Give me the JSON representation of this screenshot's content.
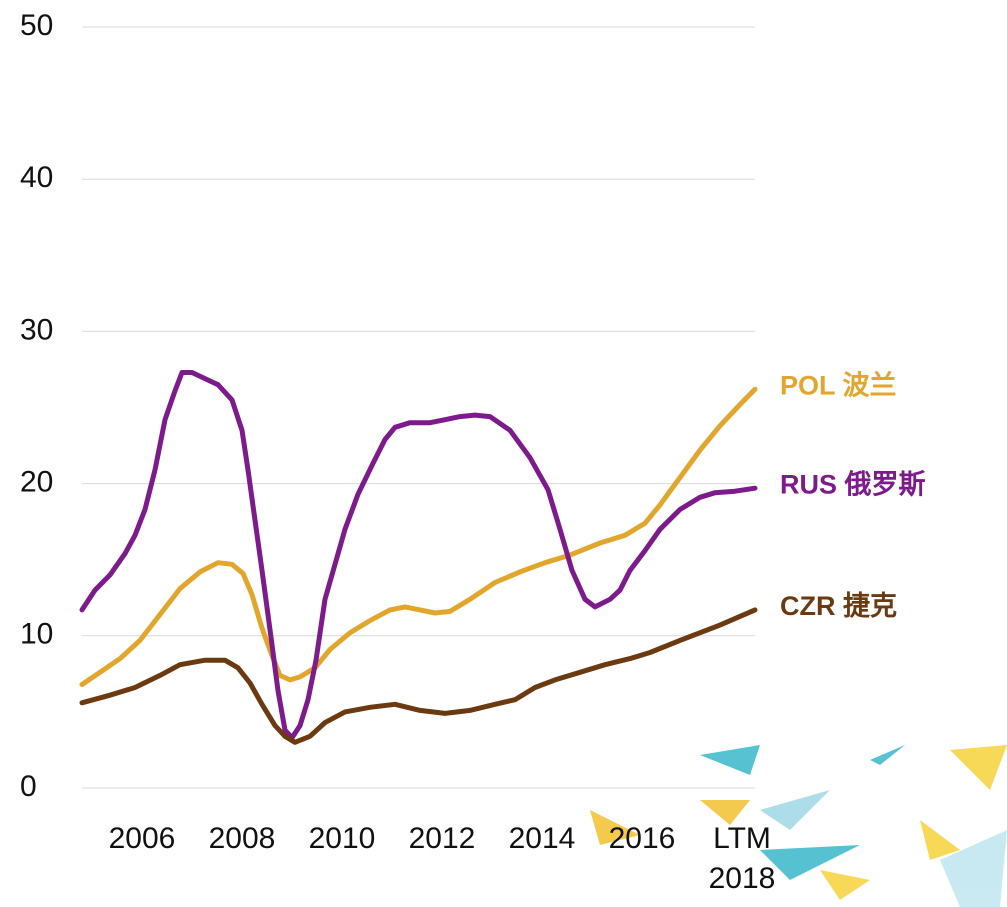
{
  "chart_data": {
    "type": "line",
    "ylim": [
      0,
      50
    ],
    "yticks": [
      0,
      10,
      20,
      30,
      40,
      50
    ],
    "grid": true,
    "xlim": [
      2004.8,
      2018.26
    ],
    "xticks": [
      2006,
      2008,
      2010,
      2012,
      2014,
      2016,
      {
        "value": 2018,
        "label": "LTM 2018"
      }
    ],
    "series": [
      {
        "name": "POL 波兰",
        "color": "#e2a62c",
        "x": [
          2004.8,
          2005.16,
          2005.56,
          2005.96,
          2006.36,
          2006.76,
          2007.16,
          2007.52,
          2007.8,
          2008.02,
          2008.2,
          2008.4,
          2008.6,
          2008.76,
          2008.96,
          2009.16,
          2009.46,
          2009.76,
          2010.16,
          2010.56,
          2010.96,
          2011.26,
          2011.56,
          2011.86,
          2012.16,
          2012.56,
          2013.06,
          2013.56,
          2014.06,
          2014.56,
          2015.16,
          2015.66,
          2016.06,
          2016.36,
          2016.76,
          2017.16,
          2017.56,
          2017.96,
          2018.26
        ],
        "values": [
          6.8,
          7.6,
          8.5,
          9.7,
          11.4,
          13.1,
          14.2,
          14.8,
          14.7,
          14.1,
          12.7,
          10.5,
          8.7,
          7.4,
          7.1,
          7.3,
          7.9,
          9.1,
          10.2,
          11.0,
          11.7,
          11.9,
          11.7,
          11.5,
          11.6,
          12.4,
          13.5,
          14.2,
          14.8,
          15.3,
          16.1,
          16.6,
          17.4,
          18.6,
          20.4,
          22.2,
          23.8,
          25.2,
          26.2
        ]
      },
      {
        "name": "RUS 俄罗斯",
        "color": "#7d1a8c",
        "x": [
          2004.8,
          2005.06,
          2005.36,
          2005.66,
          2005.86,
          2006.06,
          2006.26,
          2006.46,
          2006.66,
          2006.8,
          2007.0,
          2007.26,
          2007.52,
          2007.8,
          2008.0,
          2008.12,
          2008.26,
          2008.4,
          2008.56,
          2008.72,
          2008.86,
          2009.0,
          2009.16,
          2009.32,
          2009.48,
          2009.66,
          2009.86,
          2010.06,
          2010.32,
          2010.6,
          2010.86,
          2011.06,
          2011.36,
          2011.76,
          2012.06,
          2012.36,
          2012.66,
          2012.96,
          2013.36,
          2013.76,
          2014.12,
          2014.36,
          2014.6,
          2014.86,
          2015.06,
          2015.36,
          2015.56,
          2015.76,
          2016.06,
          2016.36,
          2016.76,
          2017.16,
          2017.46,
          2017.86,
          2018.26
        ],
        "values": [
          11.7,
          13.0,
          14.0,
          15.4,
          16.6,
          18.3,
          20.9,
          24.2,
          26.1,
          27.3,
          27.3,
          26.9,
          26.5,
          25.5,
          23.5,
          20.9,
          17.6,
          14.3,
          10.4,
          6.4,
          3.8,
          3.3,
          4.1,
          5.8,
          8.4,
          12.4,
          14.7,
          17.0,
          19.3,
          21.2,
          22.9,
          23.7,
          24.0,
          24.0,
          24.2,
          24.4,
          24.5,
          24.4,
          23.5,
          21.7,
          19.6,
          17.0,
          14.3,
          12.4,
          11.9,
          12.4,
          13.0,
          14.3,
          15.6,
          17.0,
          18.3,
          19.1,
          19.4,
          19.5,
          19.7
        ]
      },
      {
        "name": "CZR 捷克",
        "color": "#6b3a10",
        "x": [
          2004.8,
          2005.36,
          2005.86,
          2006.36,
          2006.76,
          2007.26,
          2007.66,
          2007.92,
          2008.16,
          2008.4,
          2008.66,
          2008.86,
          2009.06,
          2009.36,
          2009.66,
          2010.06,
          2010.56,
          2011.06,
          2011.56,
          2012.06,
          2012.56,
          2013.06,
          2013.46,
          2013.86,
          2014.26,
          2014.76,
          2015.26,
          2015.76,
          2016.16,
          2016.76,
          2017.56,
          2018.26
        ],
        "values": [
          5.6,
          6.1,
          6.6,
          7.4,
          8.1,
          8.4,
          8.4,
          7.9,
          6.9,
          5.5,
          4.1,
          3.4,
          3.0,
          3.4,
          4.3,
          5.0,
          5.3,
          5.5,
          5.1,
          4.9,
          5.1,
          5.5,
          5.8,
          6.6,
          7.1,
          7.6,
          8.1,
          8.5,
          8.9,
          9.7,
          10.7,
          11.7
        ]
      }
    ]
  }
}
